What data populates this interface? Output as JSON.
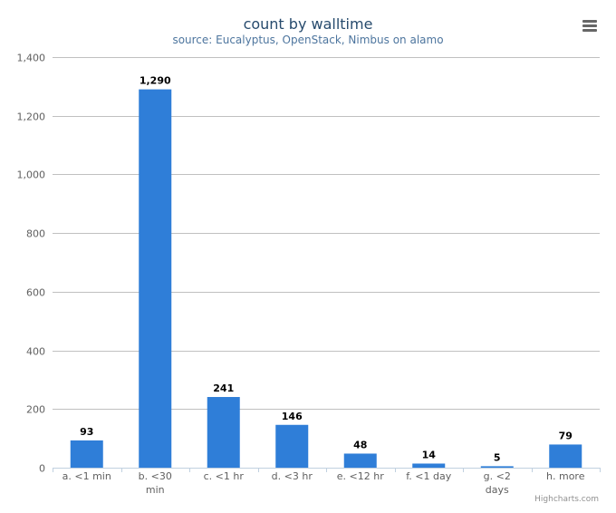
{
  "chart_data": {
    "type": "bar",
    "title": "count by walltime",
    "subtitle": "source: Eucalyptus, OpenStack, Nimbus on alamo",
    "xlabel": "",
    "ylabel": "",
    "categories": [
      "a. <1 min",
      "b. <30 min",
      "c. <1 hr",
      "d. <3 hr",
      "e. <12 hr",
      "f. <1 day",
      "g. <2 days",
      "h. more"
    ],
    "category_lines": [
      [
        "a. <1 min"
      ],
      [
        "b. <30",
        "min"
      ],
      [
        "c. <1 hr"
      ],
      [
        "d. <3 hr"
      ],
      [
        "e. <12 hr"
      ],
      [
        "f. <1 day"
      ],
      [
        "g. <2",
        "days"
      ],
      [
        "h. more"
      ]
    ],
    "values": [
      93,
      1290,
      241,
      146,
      48,
      14,
      5,
      79
    ],
    "data_labels": [
      "93",
      "1,290",
      "241",
      "146",
      "48",
      "14",
      "5",
      "79"
    ],
    "ylim": [
      0,
      1400
    ],
    "yticks": [
      0,
      200,
      400,
      600,
      800,
      1000,
      1200,
      1400
    ],
    "ytick_labels": [
      "0",
      "200",
      "400",
      "600",
      "800",
      "1,000",
      "1,200",
      "1,400"
    ],
    "grid": true,
    "legend": "none",
    "bar_color": "#2f7ed8"
  },
  "credits": "Highcharts.com",
  "menu_icon": "hamburger-menu-icon"
}
